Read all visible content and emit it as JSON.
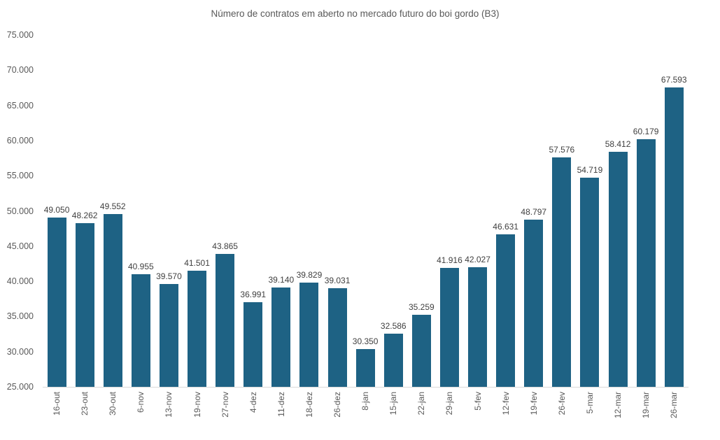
{
  "title": "Número de contratos em aberto no mercado futuro do boi gordo (B3)",
  "colors": {
    "background": "#FFFFFF",
    "bar": "#1E6284",
    "title_text": "#595959",
    "axis_text": "#595959",
    "data_label_text": "#404040",
    "axis_line": "#D9D9D9"
  },
  "chart_data": {
    "type": "bar",
    "title": "Número de contratos em aberto no mercado futuro do boi gordo (B3)",
    "xlabel": "",
    "ylabel": "",
    "categories": [
      "16-out",
      "23-out",
      "30-out",
      "6-nov",
      "13-nov",
      "19-nov",
      "27-nov",
      "4-dez",
      "11-dez",
      "18-dez",
      "26-dez",
      "8-jan",
      "15-jan",
      "22-jan",
      "29-jan",
      "5-fev",
      "12-fev",
      "19-fev",
      "26-fev",
      "5-mar",
      "12-mar",
      "19-mar",
      "26-mar"
    ],
    "values": [
      49050,
      48262,
      49552,
      40955,
      39570,
      41501,
      43865,
      36991,
      39140,
      39829,
      39031,
      30350,
      32586,
      35259,
      41916,
      42027,
      46631,
      48797,
      57576,
      54719,
      58412,
      60179,
      67593
    ],
    "value_labels": [
      "49.050",
      "48.262",
      "49.552",
      "40.955",
      "39.570",
      "41.501",
      "43.865",
      "36.991",
      "39.140",
      "39.829",
      "39.031",
      "30.350",
      "32.586",
      "35.259",
      "41.916",
      "42.027",
      "46.631",
      "48.797",
      "57.576",
      "54.719",
      "58.412",
      "60.179",
      "67.593"
    ],
    "ylim": [
      25000,
      75000
    ],
    "ytick_step": 5000,
    "ytick_labels_top_to_bottom": [
      "75.000",
      "70.000",
      "65.000",
      "60.000",
      "55.000",
      "50.000",
      "45.000",
      "40.000",
      "35.000",
      "30.000",
      "25.000"
    ],
    "grid": false,
    "legend": false,
    "data_labels_shown": true,
    "bar_color": "#1E6284"
  }
}
